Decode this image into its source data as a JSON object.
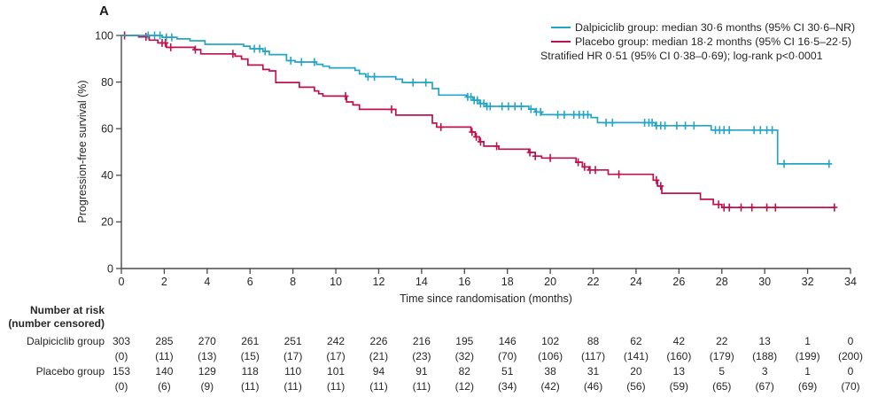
{
  "panel_label": "A",
  "colors": {
    "axis": "#4a4a4a",
    "text": "#262626",
    "dalpiciclib": "#24a5c6",
    "placebo": "#c0114f"
  },
  "chart_data": {
    "type": "line",
    "subtype": "kaplan-meier-step",
    "xlabel": "Time since randomisation (months)",
    "ylabel": "Progression-free survival (%)",
    "xlim": [
      0,
      34
    ],
    "ylim": [
      0,
      100
    ],
    "xticks": [
      0,
      2,
      4,
      6,
      8,
      10,
      12,
      14,
      16,
      18,
      20,
      22,
      24,
      26,
      28,
      30,
      32,
      34
    ],
    "yticks": [
      0,
      20,
      40,
      60,
      80,
      100
    ],
    "grid": false,
    "legend_position": "top-right",
    "annotation": "Stratified HR 0·51 (95% CI 0·38–0·69); log-rank p<0·0001",
    "series": [
      {
        "name": "Dalpiciclib group",
        "legend_label": "Dalpiciclib group: median 30·6 months (95% CI 30·6–NR)",
        "color": "#24a5c6",
        "steps": [
          [
            0,
            100
          ],
          [
            1.9,
            99.2
          ],
          [
            2.6,
            98.5
          ],
          [
            3.2,
            97.7
          ],
          [
            3.9,
            96.2
          ],
          [
            5.7,
            95.4
          ],
          [
            6.0,
            94.3
          ],
          [
            6.6,
            93.2
          ],
          [
            6.9,
            91.8
          ],
          [
            7.7,
            89.2
          ],
          [
            8.1,
            88.6
          ],
          [
            9.1,
            87.6
          ],
          [
            9.4,
            86.8
          ],
          [
            9.7,
            86.1
          ],
          [
            10.9,
            85.0
          ],
          [
            11.1,
            83.5
          ],
          [
            11.4,
            82.3
          ],
          [
            12.8,
            81.2
          ],
          [
            13.1,
            79.8
          ],
          [
            14.5,
            77.2
          ],
          [
            14.8,
            74.4
          ],
          [
            16.1,
            73.6
          ],
          [
            16.4,
            72.2
          ],
          [
            16.7,
            70.8
          ],
          [
            17.0,
            69.6
          ],
          [
            19.0,
            68.4
          ],
          [
            19.3,
            67.2
          ],
          [
            19.6,
            66.0
          ],
          [
            21.9,
            64.8
          ],
          [
            22.2,
            62.6
          ],
          [
            24.9,
            61.3
          ],
          [
            27.5,
            59.4
          ],
          [
            30.6,
            44.9
          ],
          [
            33.05,
            44.9
          ]
        ],
        "censor_times": [
          1.25,
          1.55,
          1.8,
          2.1,
          2.35,
          6.2,
          6.45,
          6.7,
          7.9,
          8.4,
          9.0,
          11.5,
          11.8,
          13.6,
          14.2,
          16.15,
          16.3,
          16.45,
          16.6,
          16.75,
          16.9,
          17.05,
          17.2,
          17.75,
          18.05,
          18.35,
          18.65,
          19.1,
          19.35,
          19.55,
          20.35,
          20.65,
          21.1,
          21.35,
          21.55,
          21.75,
          22.6,
          22.9,
          24.4,
          24.6,
          24.75,
          24.95,
          25.15,
          25.35,
          25.9,
          26.3,
          26.7,
          27.7,
          27.9,
          28.1,
          28.35,
          29.5,
          29.8,
          30.1,
          30.35,
          30.9,
          33.0
        ]
      },
      {
        "name": "Placebo group",
        "legend_label": "Placebo group: median 18·2 months (95% CI 16·5–22·5)",
        "color": "#c0114f",
        "steps": [
          [
            0,
            100
          ],
          [
            0.8,
            99.4
          ],
          [
            1.3,
            98.0
          ],
          [
            1.7,
            96.8
          ],
          [
            2.1,
            94.9
          ],
          [
            3.4,
            93.9
          ],
          [
            3.7,
            92.1
          ],
          [
            5.3,
            91.1
          ],
          [
            5.6,
            89.9
          ],
          [
            5.9,
            87.3
          ],
          [
            6.6,
            85.4
          ],
          [
            6.9,
            84.8
          ],
          [
            7.2,
            79.8
          ],
          [
            8.3,
            77.8
          ],
          [
            9.0,
            76.2
          ],
          [
            9.2,
            75.0
          ],
          [
            9.4,
            74.0
          ],
          [
            10.5,
            71.5
          ],
          [
            10.8,
            70.2
          ],
          [
            11.1,
            68.3
          ],
          [
            12.8,
            65.8
          ],
          [
            14.5,
            62.4
          ],
          [
            14.7,
            60.7
          ],
          [
            16.3,
            58.6
          ],
          [
            16.5,
            56.5
          ],
          [
            16.7,
            54.4
          ],
          [
            16.9,
            52.5
          ],
          [
            17.6,
            51.2
          ],
          [
            19.0,
            49.8
          ],
          [
            19.3,
            48.2
          ],
          [
            19.6,
            47.4
          ],
          [
            21.2,
            45.6
          ],
          [
            21.5,
            43.6
          ],
          [
            21.8,
            42.3
          ],
          [
            22.7,
            40.4
          ],
          [
            24.8,
            37.9
          ],
          [
            25.0,
            35.4
          ],
          [
            25.2,
            32.3
          ],
          [
            27.0,
            29.7
          ],
          [
            27.6,
            27.5
          ],
          [
            28.0,
            26.2
          ],
          [
            33.3,
            26.2
          ]
        ],
        "censor_times": [
          0.15,
          1.15,
          1.9,
          2.05,
          2.3,
          3.45,
          5.2,
          10.45,
          12.6,
          14.9,
          16.35,
          16.55,
          16.75,
          17.5,
          19.05,
          19.3,
          20.0,
          21.3,
          21.6,
          21.85,
          22.1,
          23.2,
          24.95,
          25.15,
          27.85,
          28.1,
          28.35,
          28.9,
          29.4,
          30.1,
          30.5,
          33.25
        ]
      }
    ]
  },
  "risk_table": {
    "header_line1": "Number at risk",
    "header_line2": "(number censored)",
    "timepoints": [
      0,
      2,
      4,
      6,
      8,
      10,
      12,
      14,
      16,
      18,
      20,
      22,
      24,
      26,
      28,
      30,
      32,
      34
    ],
    "rows": [
      {
        "label": "Dalpiciclib group",
        "at_risk": [
          "303",
          "285",
          "270",
          "261",
          "251",
          "242",
          "226",
          "216",
          "195",
          "146",
          "102",
          "88",
          "62",
          "42",
          "22",
          "13",
          "1",
          "0"
        ],
        "censored": [
          "(0)",
          "(11)",
          "(13)",
          "(15)",
          "(17)",
          "(17)",
          "(21)",
          "(23)",
          "(32)",
          "(70)",
          "(106)",
          "(117)",
          "(141)",
          "(160)",
          "(179)",
          "(188)",
          "(199)",
          "(200)"
        ]
      },
      {
        "label": "Placebo group",
        "at_risk": [
          "153",
          "140",
          "129",
          "118",
          "110",
          "101",
          "94",
          "91",
          "82",
          "51",
          "38",
          "31",
          "20",
          "13",
          "5",
          "3",
          "1",
          "0"
        ],
        "censored": [
          "(0)",
          "(6)",
          "(9)",
          "(11)",
          "(11)",
          "(11)",
          "(11)",
          "(11)",
          "(12)",
          "(34)",
          "(42)",
          "(46)",
          "(56)",
          "(59)",
          "(65)",
          "(67)",
          "(69)",
          "(70)"
        ]
      }
    ]
  }
}
